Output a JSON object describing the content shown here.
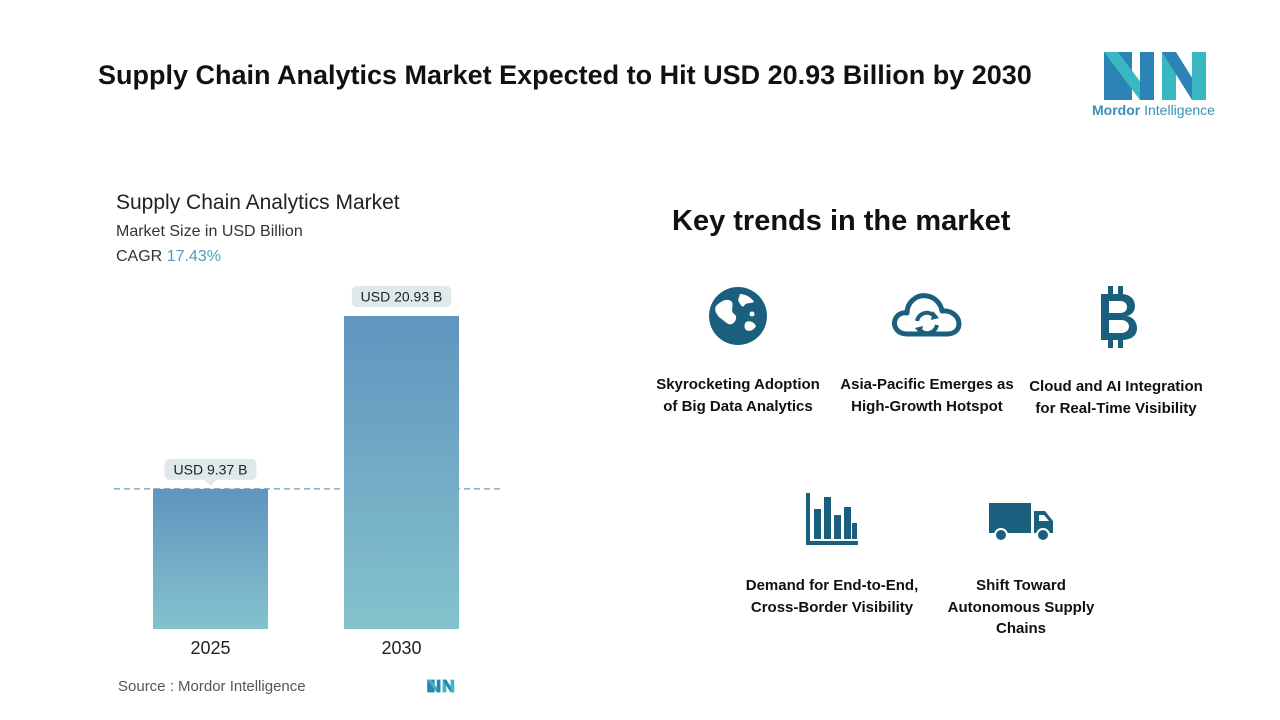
{
  "headline": "Supply Chain Analytics Market Expected to Hit USD 20.93 Billion by 2030",
  "brand": {
    "name_bold": "Mordor",
    "name_rest": " Intelligence",
    "color": "#3a8fb5"
  },
  "chart_data": {
    "type": "bar",
    "title": "Supply Chain Analytics Market",
    "subtitle": "Market Size in USD Billion",
    "cagr_label": "CAGR",
    "cagr_value": "17.43%",
    "categories": [
      "2025",
      "2030"
    ],
    "values": [
      9.37,
      20.93
    ],
    "data_labels": [
      "USD 9.37 B",
      "USD 20.93 B"
    ],
    "ylim": [
      0,
      22.8
    ],
    "reference_line": 9.37,
    "bar_gradient": [
      "#5f95bf",
      "#84c2cc"
    ]
  },
  "source": "Source :  Mordor Intelligence",
  "trends": {
    "title": "Key trends in the market",
    "items": [
      {
        "icon": "globe-icon",
        "label": "Skyrocketing Adoption of Big Data Analytics"
      },
      {
        "icon": "cloud-sync-icon",
        "label": "Asia-Pacific Emerges as High-Growth Hotspot"
      },
      {
        "icon": "bitcoin-icon",
        "label": "Cloud and AI Integration for Real-Time Visibility"
      },
      {
        "icon": "bar-chart-icon",
        "label": "Demand for End-to-End, Cross-Border Visibility"
      },
      {
        "icon": "truck-icon",
        "label": "Shift Toward Autonomous Supply Chains"
      }
    ],
    "icon_color": "#1a5f7e"
  }
}
